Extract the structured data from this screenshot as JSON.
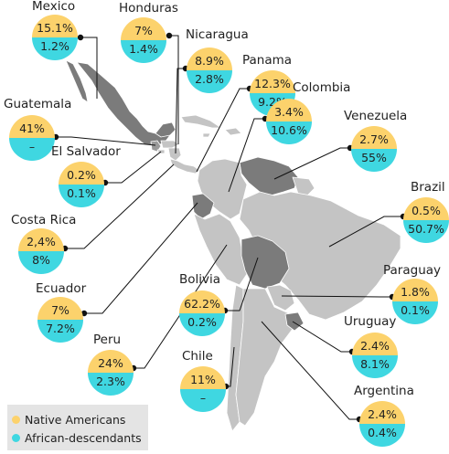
{
  "legend": {
    "native": {
      "label": "Native Americans",
      "color": "#fcd26c"
    },
    "african": {
      "label": "African-descendants",
      "color": "#3fd7e1"
    }
  },
  "countries": {
    "mexico": {
      "name": "Mexico",
      "native": "15.1%",
      "african": "1.2%"
    },
    "honduras": {
      "name": "Honduras",
      "native": "7%",
      "african": "1.4%"
    },
    "nicaragua": {
      "name": "Nicaragua",
      "native": "8.9%",
      "african": "2.8%"
    },
    "panama": {
      "name": "Panama",
      "native": "12.3%",
      "african": "9.2%"
    },
    "colombia": {
      "name": "Colombia",
      "native": "3.4%",
      "african": "10.6%"
    },
    "venezuela": {
      "name": "Venezuela",
      "native": "2.7%",
      "african": "55%"
    },
    "guatemala": {
      "name": "Guatemala",
      "native": "41%",
      "african": "–"
    },
    "el_salvador": {
      "name": "El Salvador",
      "native": "0.2%",
      "african": "0.1%"
    },
    "brazil": {
      "name": "Brazil",
      "native": "0.5%",
      "african": "50.7%"
    },
    "costa_rica": {
      "name": "Costa Rica",
      "native": "2,4%",
      "african": "8%"
    },
    "ecuador": {
      "name": "Ecuador",
      "native": "7%",
      "african": "7.2%"
    },
    "paraguay": {
      "name": "Paraguay",
      "native": "1.8%",
      "african": "0.1%"
    },
    "bolivia": {
      "name": "Bolivia",
      "native": "62.2%",
      "african": "0.2%"
    },
    "uruguay": {
      "name": "Uruguay",
      "native": "2.4%",
      "african": "8.1%"
    },
    "peru": {
      "name": "Peru",
      "native": "24%",
      "african": "2.3%"
    },
    "chile": {
      "name": "Chile",
      "native": "11%",
      "african": "–"
    },
    "argentina": {
      "name": "Argentina",
      "native": "2.4%",
      "african": "0.4%"
    }
  },
  "colors": {
    "land_light": "#c4c4c4",
    "land_dark": "#7b7b7b",
    "border": "#ffffff",
    "leader_line": "#111111"
  }
}
